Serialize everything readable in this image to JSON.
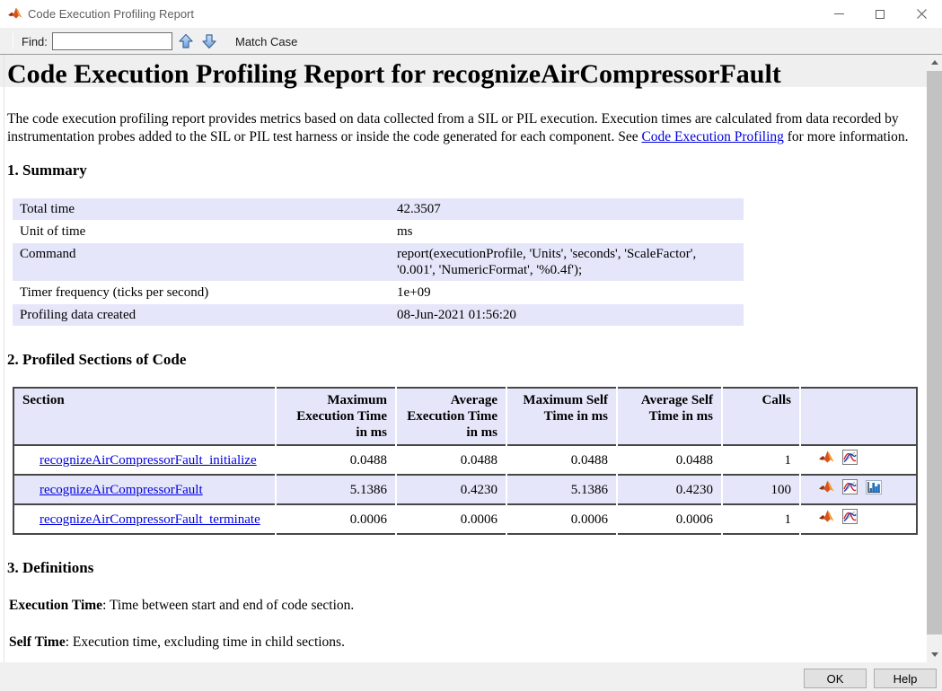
{
  "window": {
    "title": "Code Execution Profiling Report"
  },
  "toolbar": {
    "find_label": "Find:",
    "find_value": "",
    "match_case_label": "Match Case"
  },
  "report": {
    "title": "Code Execution Profiling Report for recognizeAirCompressorFault",
    "intro": {
      "before_link": "The code execution profiling report provides metrics based on data collected from a SIL or PIL execution. Execution times are calculated from data recorded by instrumentation probes added to the SIL or PIL test harness or inside the code generated for each component. See ",
      "link_text": "Code Execution Profiling",
      "after_link": " for more information."
    },
    "summary": {
      "heading": "1. Summary",
      "rows": [
        {
          "label": "Total time",
          "value": "42.3507"
        },
        {
          "label": "Unit of time",
          "value": "ms"
        },
        {
          "label": "Command",
          "value": "report(executionProfile, 'Units', 'seconds', 'ScaleFactor', '0.001', 'NumericFormat', '%0.4f');"
        },
        {
          "label": "Timer frequency (ticks per second)",
          "value": "1e+09"
        },
        {
          "label": "Profiling data created",
          "value": "08-Jun-2021 01:56:20"
        }
      ]
    },
    "sections": {
      "heading": "2. Profiled Sections of Code",
      "columns": [
        "Section",
        "Maximum Execution Time in ms",
        "Average Execution Time in ms",
        "Maximum Self Time in ms",
        "Average Self Time in ms",
        "Calls",
        ""
      ],
      "rows": [
        {
          "section": "recognizeAirCompressorFault_initialize",
          "max_exec": "0.0488",
          "avg_exec": "0.0488",
          "max_self": "0.0488",
          "avg_self": "0.0488",
          "calls": "1",
          "has_histogram": false
        },
        {
          "section": "recognizeAirCompressorFault",
          "max_exec": "5.1386",
          "avg_exec": "0.4230",
          "max_self": "5.1386",
          "avg_self": "0.4230",
          "calls": "100",
          "has_histogram": true
        },
        {
          "section": "recognizeAirCompressorFault_terminate",
          "max_exec": "0.0006",
          "avg_exec": "0.0006",
          "max_self": "0.0006",
          "avg_self": "0.0006",
          "calls": "1",
          "has_histogram": false
        }
      ]
    },
    "definitions": {
      "heading": "3. Definitions",
      "items": [
        {
          "term": "Execution Time",
          "text": ": Time between start and end of code section."
        },
        {
          "term": "Self Time",
          "text": ": Execution time, excluding time in child sections."
        }
      ]
    }
  },
  "footer": {
    "ok_label": "OK",
    "help_label": "Help"
  },
  "icons": {
    "matlab-logo-icon": "MATLAB membrane logo (orange/red triangles)",
    "plot-icon": "framed plot thumbnail with red and blue curves",
    "histogram-icon": "framed blue bar histogram thumbnail",
    "find-previous-icon": "blue up arrow",
    "find-next-icon": "blue down arrow",
    "minimize-icon": "window minimize dash",
    "maximize-icon": "window maximize square",
    "close-icon": "window close X"
  },
  "colors": {
    "row_highlight": "#e6e6fa",
    "table_border": "#474747",
    "link": "#0000e0",
    "toolbar_bg": "#f0f0f0",
    "arrow_blue": "#4a7ab8"
  }
}
